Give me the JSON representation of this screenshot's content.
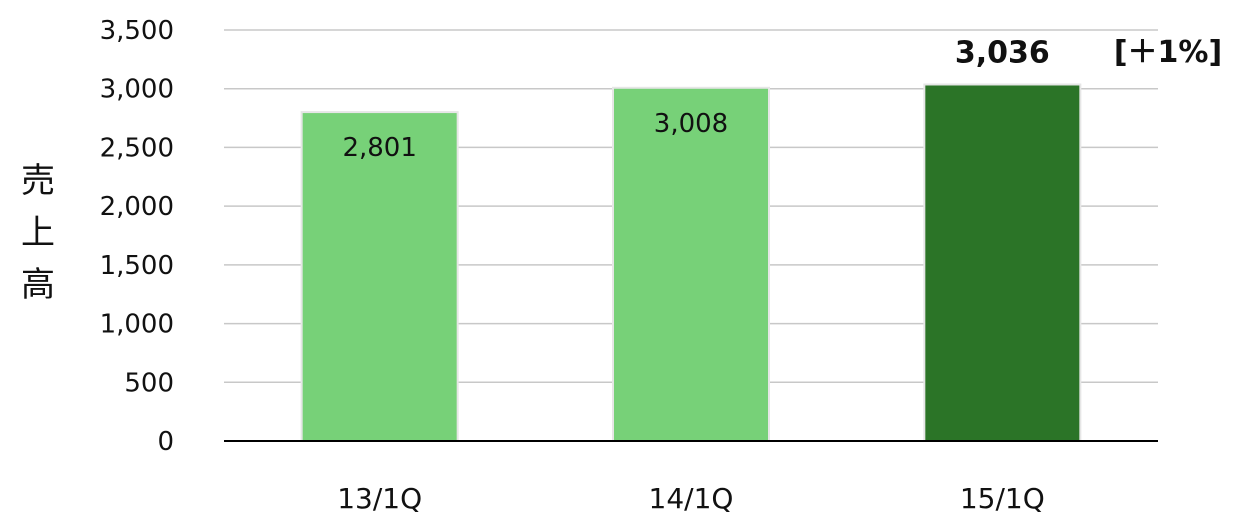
{
  "chart_data": {
    "type": "bar",
    "categories": [
      "13/1Q",
      "14/1Q",
      "15/1Q"
    ],
    "values": [
      2801,
      3008,
      3036
    ],
    "data_labels": [
      "2,801",
      "3,008",
      "3,036"
    ],
    "ylabel": "売上高",
    "ylim": [
      0,
      3500
    ],
    "yticks": [
      0,
      500,
      1000,
      1500,
      2000,
      2500,
      3000,
      3500
    ],
    "ytick_labels": [
      "0",
      "500",
      "1,000",
      "1,500",
      "2,000",
      "2,500",
      "3,000",
      "3,500"
    ],
    "grid": true,
    "highlight_index": 2,
    "annotation": "[＋1%]",
    "colors": {
      "bar": "#77d178",
      "highlight": "#2b7427",
      "grid": "#c8c8c8",
      "axis": "#000000"
    }
  }
}
